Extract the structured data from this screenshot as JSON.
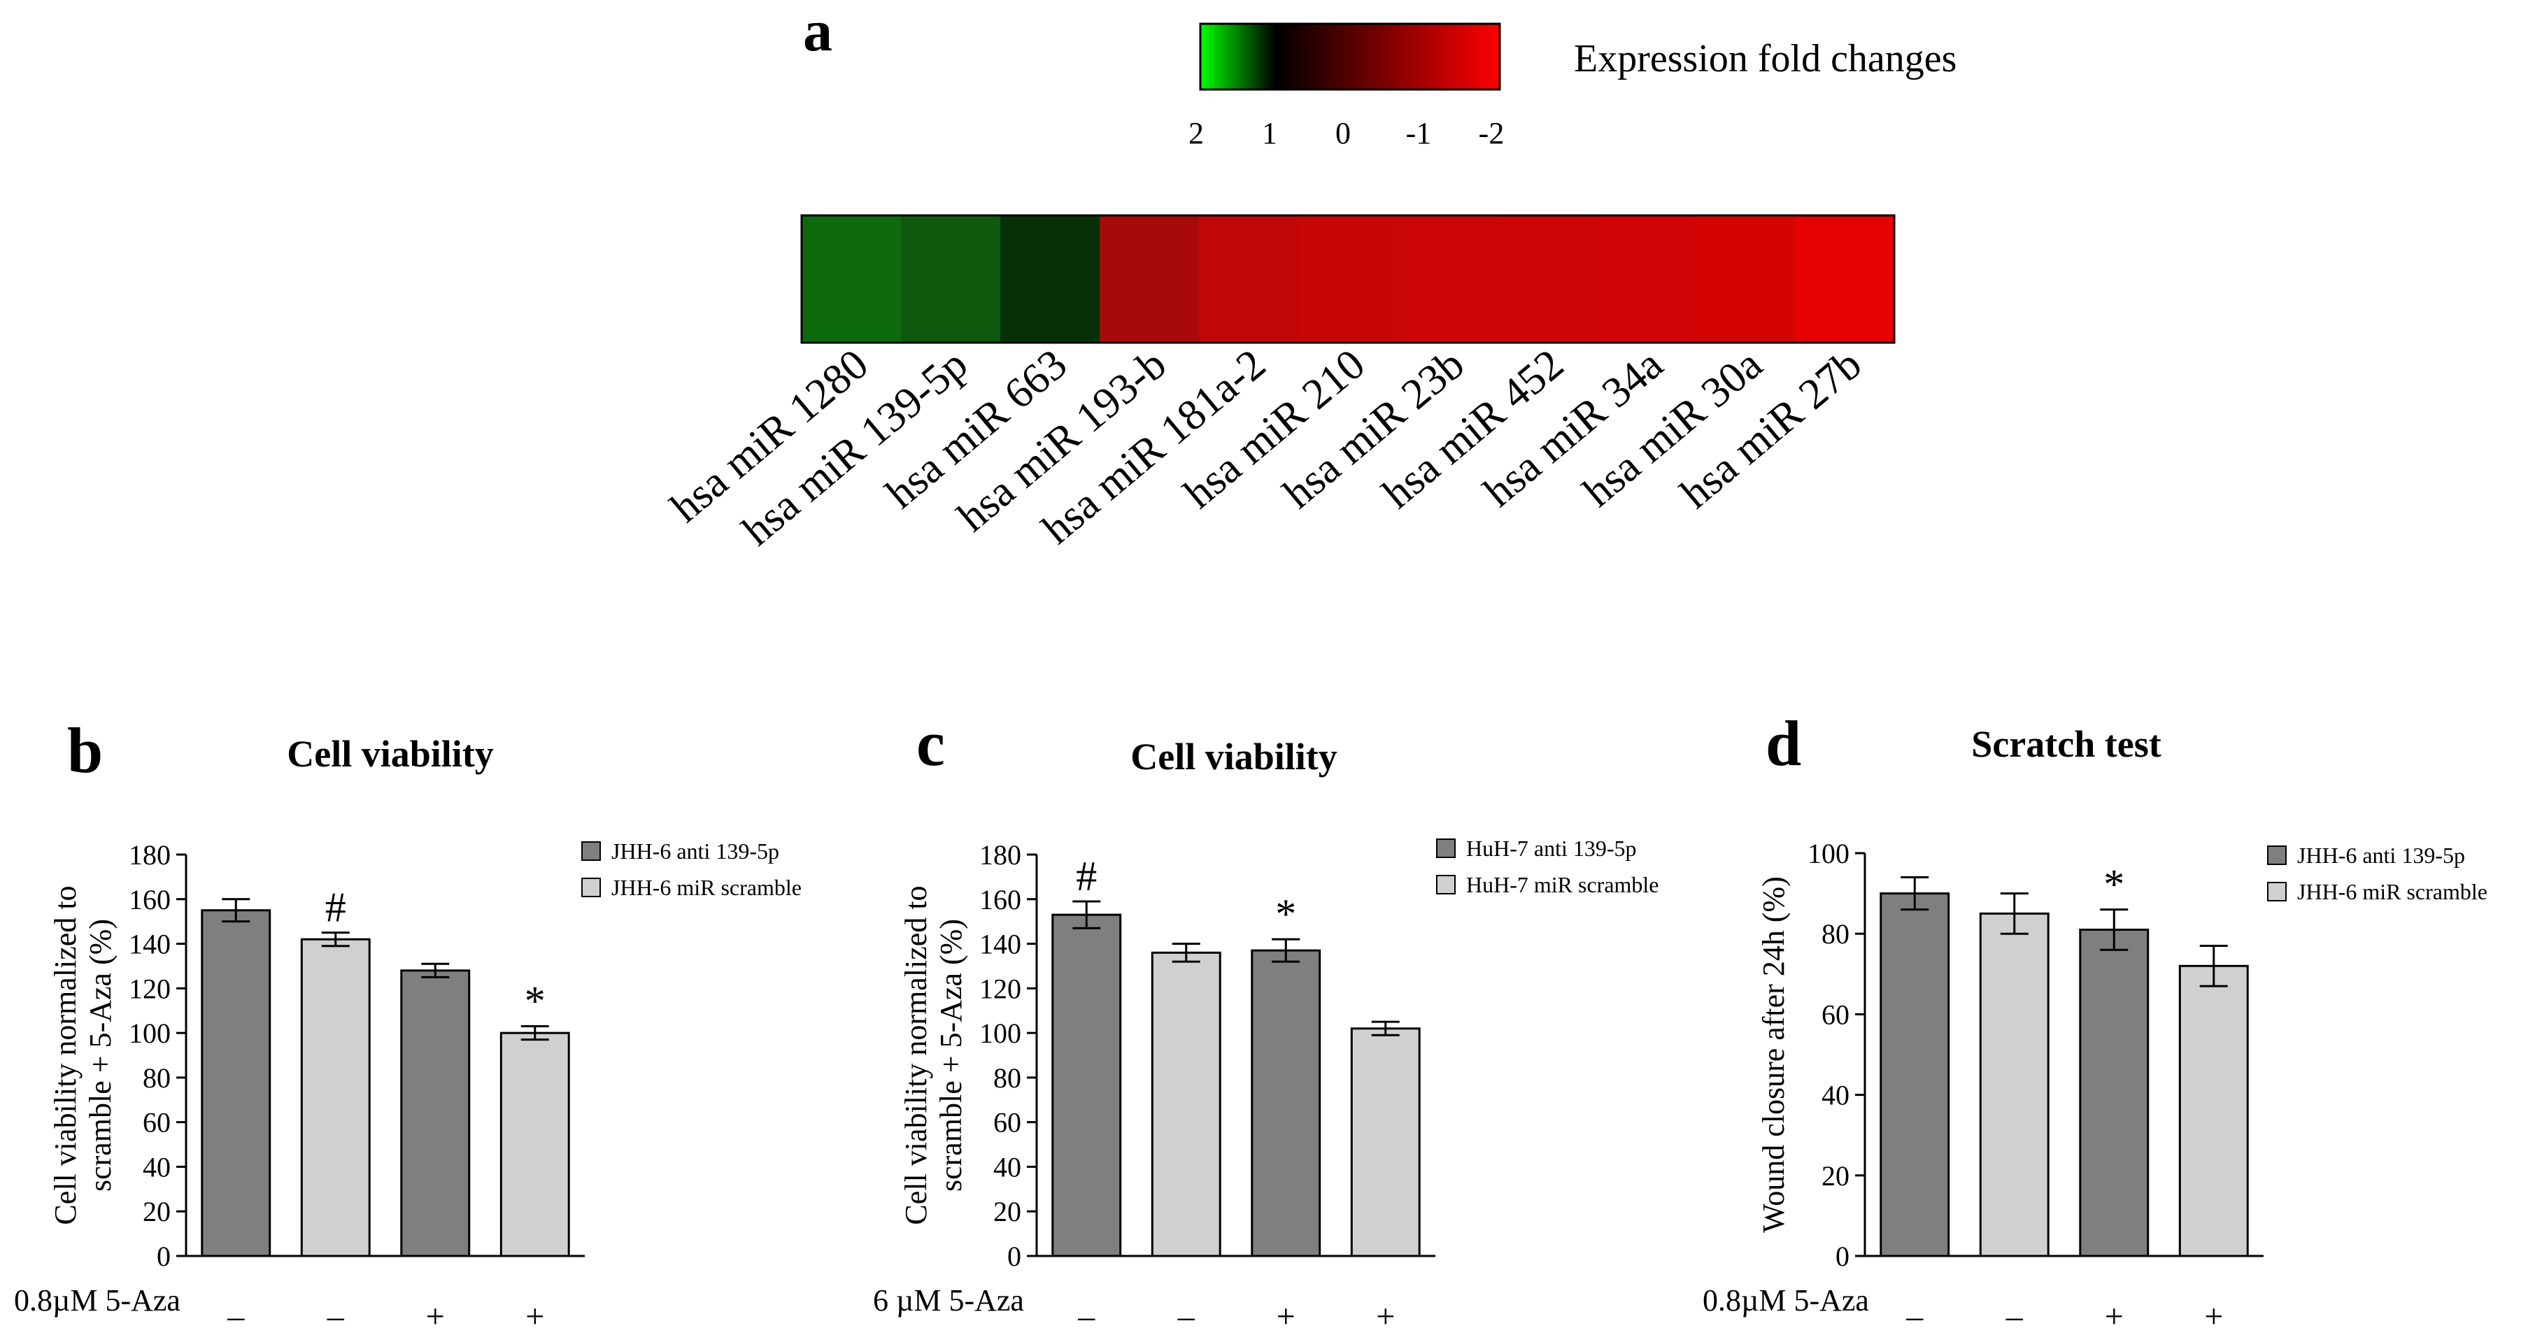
{
  "panel_a": {
    "letter": "a",
    "colorbar": {
      "title": "Expression fold changes",
      "ticks": [
        "2",
        "1",
        "0",
        "-1",
        "-2"
      ],
      "stops": [
        "#00ff00",
        "#000000",
        "#ff0000"
      ]
    }
  },
  "panel_b": {
    "letter": "b",
    "treatment_label": "0.8µM 5-Aza",
    "treatment_signs": [
      "–",
      "–",
      "+",
      "+"
    ]
  },
  "panel_c": {
    "letter": "c",
    "treatment_label": "6 µM 5-Aza",
    "treatment_signs": [
      "–",
      "–",
      "+",
      "+"
    ]
  },
  "panel_d": {
    "letter": "d",
    "treatment_label": "0.8µM 5-Aza",
    "treatment_signs": [
      "–",
      "–",
      "+",
      "+"
    ]
  },
  "colors": {
    "dark_bar": "#7f7f7f",
    "light_bar": "#d0d0d0",
    "heat_green": [
      "#0d6b0d",
      "#0f590f",
      "#073007"
    ],
    "heat_red": [
      "#a80909",
      "#c00707",
      "#c80606",
      "#cc0606",
      "#cd0505",
      "#d00404",
      "#d40404",
      "#e40202"
    ]
  },
  "chart_data": [
    {
      "type": "heatmap",
      "title": "",
      "categories": [
        "hsa miR 1280",
        "hsa miR 139-5p",
        "hsa miR 663",
        "hsa miR 193-b",
        "hsa miR 181a-2",
        "hsa miR 210",
        "hsa miR 23b",
        "hsa miR 452",
        "hsa miR 34a",
        "hsa miR 30a",
        "hsa miR 27b"
      ],
      "values": [
        1.6,
        1.6,
        1.2,
        -1.0,
        -1.3,
        -1.35,
        -1.4,
        -1.4,
        -1.4,
        -1.5,
        -1.8
      ],
      "color_scale_range": [
        2,
        -2
      ]
    },
    {
      "type": "bar",
      "title": "Cell viability",
      "xlabel": "",
      "ylabel": "Cell viability normalized to scramble + 5-Aza (%)",
      "ylim": [
        0,
        180
      ],
      "yticks": [
        0,
        20,
        40,
        60,
        80,
        100,
        120,
        140,
        160,
        180
      ],
      "legend": [
        "JHH-6 anti 139-5p",
        "JHH-6 miR scramble"
      ],
      "legend_position": "top-right",
      "bar_series": [
        0,
        1,
        0,
        1
      ],
      "values": [
        155,
        142,
        128,
        100
      ],
      "errors": [
        5,
        3,
        3,
        3
      ],
      "annotations": [
        "",
        "#",
        "",
        "*"
      ]
    },
    {
      "type": "bar",
      "title": "Cell viability",
      "xlabel": "",
      "ylabel": "Cell viability normalized to scramble + 5-Aza (%)",
      "ylim": [
        0,
        180
      ],
      "yticks": [
        0,
        20,
        40,
        60,
        80,
        100,
        120,
        140,
        160,
        180
      ],
      "legend": [
        "HuH-7 anti 139-5p",
        "HuH-7 miR scramble"
      ],
      "legend_position": "top-right",
      "bar_series": [
        0,
        1,
        0,
        1
      ],
      "values": [
        153,
        136,
        137,
        102
      ],
      "errors": [
        6,
        4,
        5,
        3
      ],
      "annotations": [
        "#",
        "",
        "*",
        ""
      ]
    },
    {
      "type": "bar",
      "title": "Scratch test",
      "xlabel": "",
      "ylabel": "Wound closure after 24h (%)",
      "ylim": [
        0,
        100
      ],
      "yticks": [
        0,
        20,
        40,
        60,
        80,
        100
      ],
      "legend": [
        "JHH-6 anti 139-5p",
        "JHH-6 miR scramble"
      ],
      "legend_position": "top-right",
      "bar_series": [
        0,
        1,
        0,
        1
      ],
      "values": [
        90,
        85,
        81,
        72
      ],
      "errors": [
        4,
        5,
        5,
        5
      ],
      "annotations": [
        "",
        "",
        "*",
        ""
      ]
    }
  ]
}
